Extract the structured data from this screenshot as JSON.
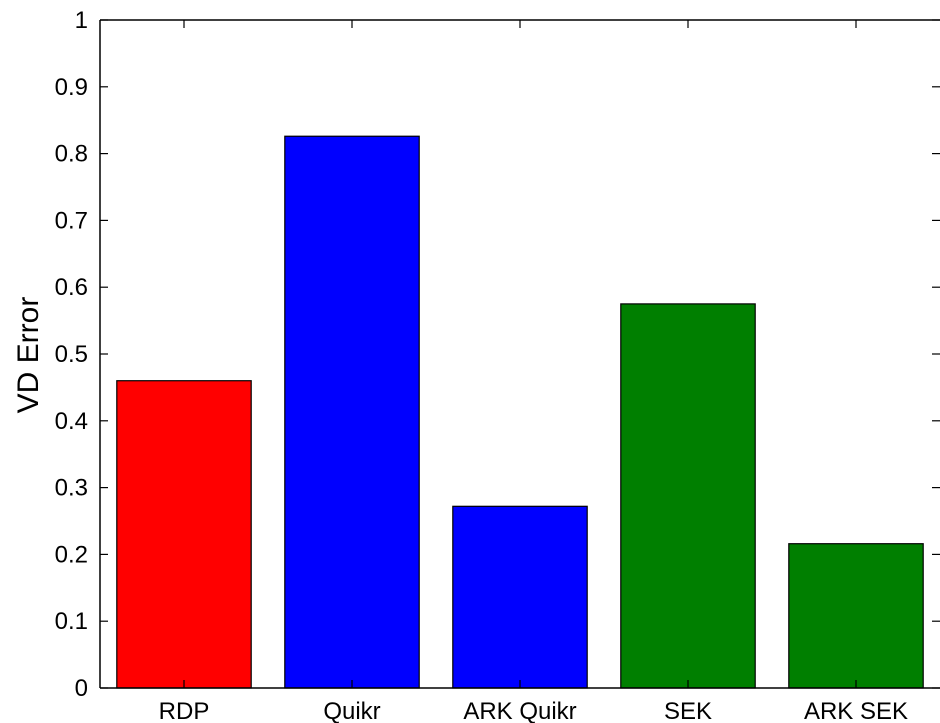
{
  "chart_data": {
    "type": "bar",
    "title": "",
    "xlabel": "",
    "ylabel": "VD Error",
    "ylim": [
      0,
      1
    ],
    "yticks": [
      0,
      0.1,
      0.2,
      0.3,
      0.4,
      0.5,
      0.6,
      0.7,
      0.8,
      0.9,
      1
    ],
    "ytick_labels": [
      "0",
      "0.1",
      "0.2",
      "0.3",
      "0.4",
      "0.5",
      "0.6",
      "0.7",
      "0.8",
      "0.9",
      "1"
    ],
    "categories": [
      "RDP",
      "Quikr",
      "ARK Quikr",
      "SEK",
      "ARK SEK"
    ],
    "values": [
      0.46,
      0.826,
      0.272,
      0.575,
      0.216
    ],
    "colors": [
      "#ff0000",
      "#0000ff",
      "#0000ff",
      "#007f00",
      "#007f00"
    ],
    "grid": false,
    "legend": "none"
  }
}
